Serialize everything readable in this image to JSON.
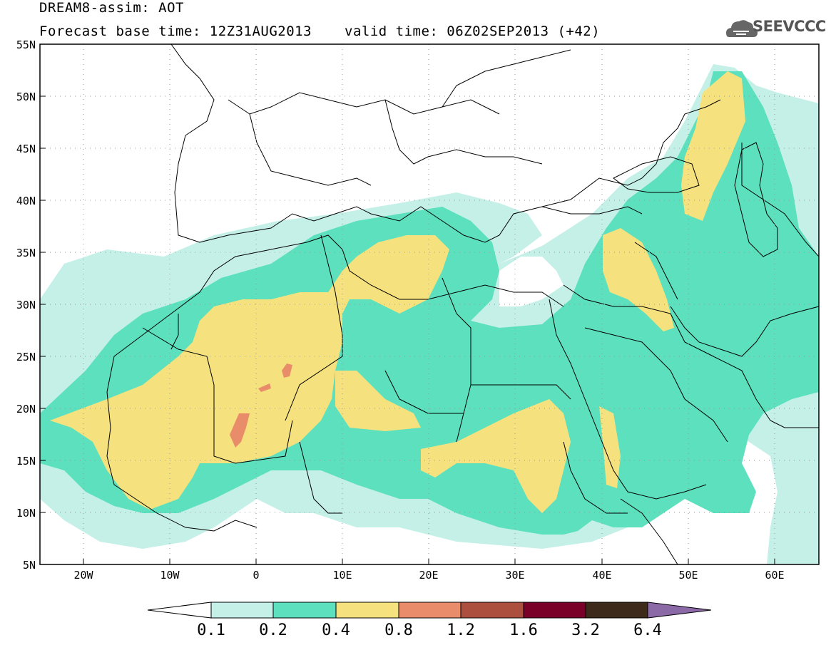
{
  "header": {
    "title_line1": "DREAM8-assim: AOT",
    "title_line2": "Forecast base time: 12Z31AUG2013",
    "valid_time": "valid time: 06Z02SEP2013 (+42)",
    "logo_text": "SEEVCCC",
    "logo_icon": "cloud-icon"
  },
  "axes": {
    "y_labels": [
      "55N",
      "50N",
      "45N",
      "40N",
      "35N",
      "30N",
      "25N",
      "20N",
      "15N",
      "10N",
      "5N"
    ],
    "x_labels": [
      "20W",
      "10W",
      "0",
      "10E",
      "20E",
      "30E",
      "40E",
      "50E",
      "60E"
    ]
  },
  "colorbar": {
    "labels": [
      "0.1",
      "0.2",
      "0.4",
      "0.8",
      "1.2",
      "1.6",
      "3.2",
      "6.4"
    ],
    "colors": [
      "#ffffff",
      "#c4f0e8",
      "#5ce0be",
      "#f5e27e",
      "#e88c6a",
      "#ad4f3f",
      "#7a0028",
      "#3d2a1a",
      "#8c6aa8"
    ]
  },
  "colors": {
    "level_0_1": "#c4f0e8",
    "level_0_2": "#5ce0be",
    "level_0_4": "#f5e27e",
    "level_0_8": "#e88c6a"
  }
}
